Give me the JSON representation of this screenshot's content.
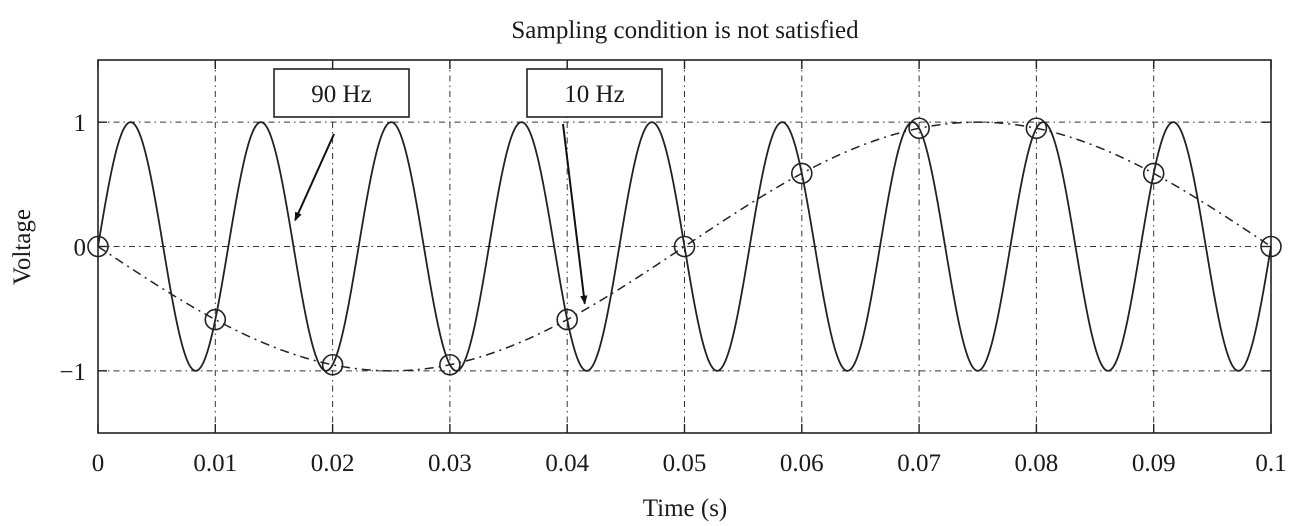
{
  "chart_data": {
    "type": "line",
    "title": "Sampling condition is not satisfied",
    "xlabel": "Time (s)",
    "ylabel": "Voltage",
    "xlim": [
      0,
      0.1
    ],
    "ylim": [
      -1.5,
      1.5
    ],
    "x_ticks": [
      "0",
      "0.01",
      "0.02",
      "0.03",
      "0.04",
      "0.05",
      "0.06",
      "0.07",
      "0.08",
      "0.09",
      "0.1"
    ],
    "x_tick_values": [
      0,
      0.01,
      0.02,
      0.03,
      0.04,
      0.05,
      0.06,
      0.07,
      0.08,
      0.09,
      0.1
    ],
    "y_ticks": [
      "−1",
      "0",
      "1"
    ],
    "y_tick_values": [
      -1,
      0,
      1
    ],
    "grid": true,
    "series": [
      {
        "style": "solid",
        "function": "sin",
        "frequency_hz": 90,
        "amplitude": 1,
        "color": "#222222"
      },
      {
        "style": "dash-dot",
        "function": "-sin",
        "frequency_hz": 10,
        "amplitude": 1,
        "color": "#222222"
      },
      {
        "style": "markers",
        "marker": "circle",
        "x": [
          0,
          0.01,
          0.02,
          0.03,
          0.04,
          0.05,
          0.06,
          0.07,
          0.08,
          0.09,
          0.1
        ],
        "y": [
          0,
          -0.588,
          -0.951,
          -0.951,
          -0.588,
          0,
          0.588,
          0.951,
          0.951,
          0.588,
          0
        ],
        "color": "#222222"
      }
    ],
    "annotations": [
      {
        "text": "90 Hz",
        "arrow_to": [
          0.0168,
          0.21
        ]
      },
      {
        "text": "10 Hz",
        "arrow_to": [
          0.0415,
          -0.46
        ]
      }
    ]
  }
}
